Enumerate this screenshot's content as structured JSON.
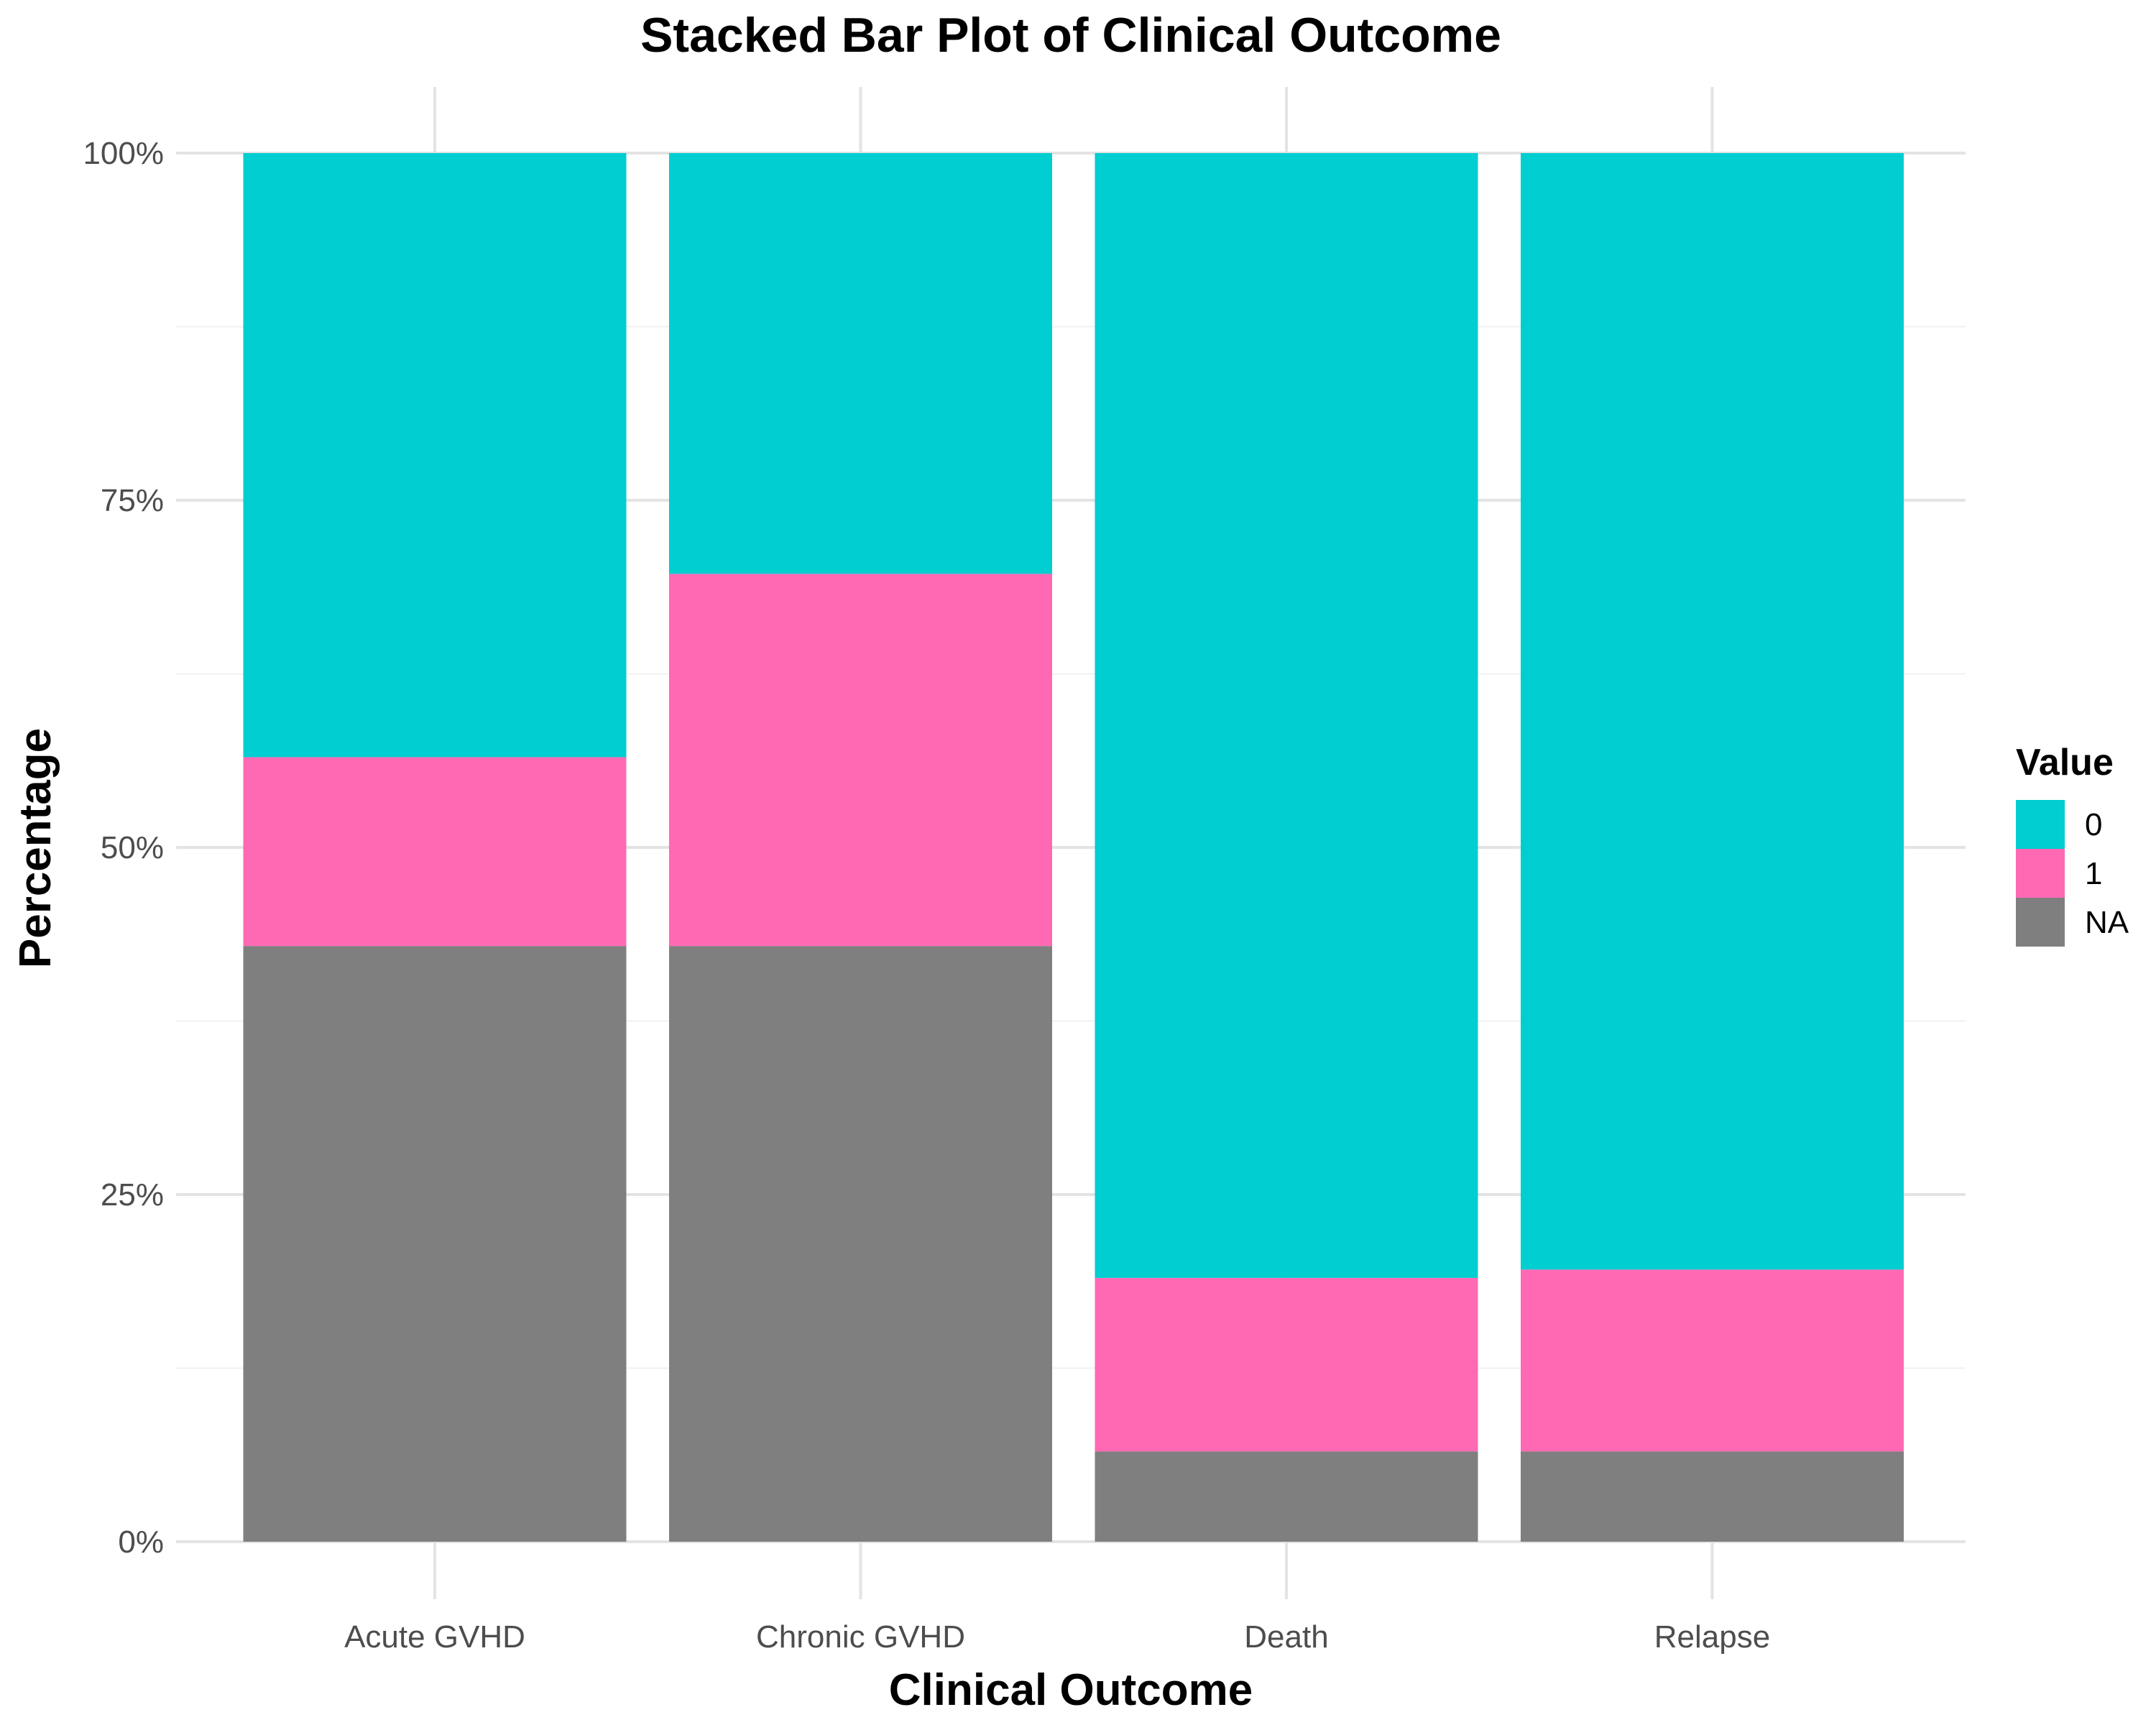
{
  "chart_data": {
    "type": "bar",
    "stacked": true,
    "title": "Stacked Bar Plot of Clinical Outcome",
    "xlabel": "Clinical Outcome",
    "ylabel": "Percentage",
    "categories": [
      "Acute GVHD",
      "Chronic GVHD",
      "Death",
      "Relapse"
    ],
    "series": [
      {
        "name": "NA",
        "color": "#7f7f7f",
        "values": [
          42.9,
          42.9,
          6.5,
          6.5
        ]
      },
      {
        "name": "1",
        "color": "#ff69b4",
        "values": [
          13.6,
          26.8,
          12.5,
          13.1
        ]
      },
      {
        "name": "0",
        "color": "#00ced1",
        "values": [
          43.5,
          30.3,
          81.0,
          80.4
        ]
      }
    ],
    "legend_order": [
      "0",
      "1",
      "NA"
    ],
    "ylim": [
      0,
      100
    ],
    "yticks": [
      0,
      25,
      50,
      75,
      100
    ],
    "ytick_labels": [
      "0%",
      "25%",
      "50%",
      "75%",
      "100%"
    ],
    "legend": {
      "title": "Value",
      "position": "right"
    },
    "grid": true
  }
}
